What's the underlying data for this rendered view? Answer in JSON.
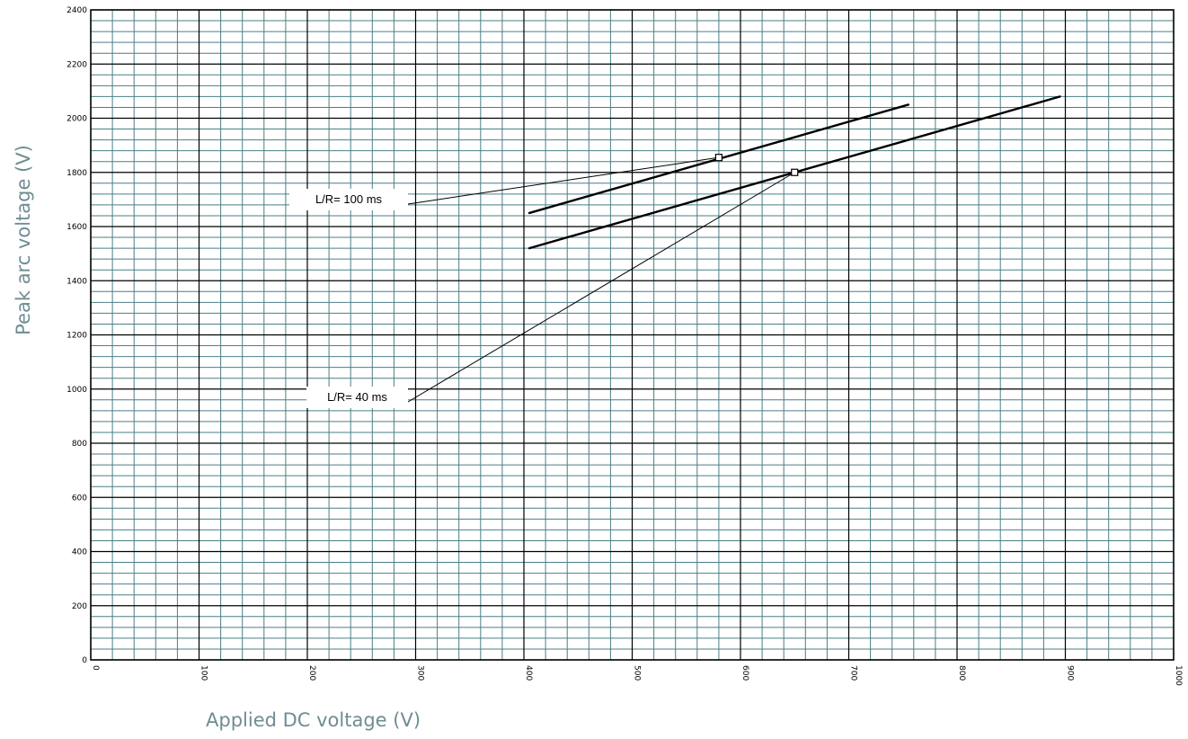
{
  "chart_data": {
    "type": "line",
    "xlabel": "Applied DC voltage (V)",
    "ylabel": "Peak arc voltage (V)",
    "xlim": [
      0,
      1000
    ],
    "ylim": [
      0,
      2400
    ],
    "x_ticks": [
      0,
      100,
      200,
      300,
      400,
      500,
      600,
      700,
      800,
      900,
      1000
    ],
    "y_ticks": [
      0,
      200,
      400,
      600,
      800,
      1000,
      1200,
      1400,
      1600,
      1800,
      2000,
      2200,
      2400
    ],
    "minor_x_step": 20,
    "minor_y_step": 40,
    "grid": true,
    "grid_color": "#4a7f86",
    "major_grid_color": "#000000",
    "axis_title_color": "#6f8d93",
    "line_color": "#000000",
    "series": [
      {
        "name": "L/R= 100 ms",
        "x": [
          405,
          755
        ],
        "y": [
          1650,
          2050
        ],
        "marker_point": [
          580,
          1855
        ]
      },
      {
        "name": "L/R= 40 ms",
        "x": [
          405,
          895
        ],
        "y": [
          1520,
          2080
        ],
        "marker_point": [
          650,
          1800
        ]
      }
    ],
    "annotations": [
      {
        "text": "L/R= 100 ms",
        "target_series": 0
      },
      {
        "text": "L/R= 40 ms",
        "target_series": 1
      }
    ]
  }
}
